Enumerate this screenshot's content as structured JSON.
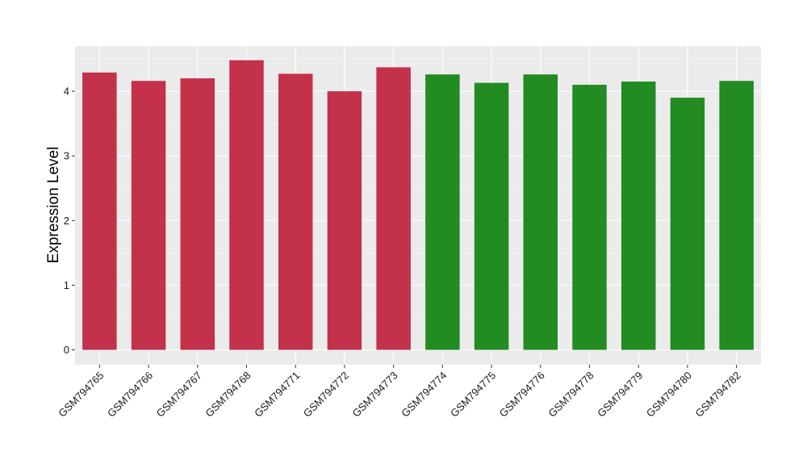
{
  "chart_data": {
    "type": "bar",
    "title": "",
    "xlabel": "",
    "ylabel": "Expression Level",
    "ylim": [
      -0.23,
      4.7
    ],
    "yticks": [
      0,
      1,
      2,
      3,
      4
    ],
    "grid": true,
    "background": "#ebebeb",
    "categories": [
      "GSM794765",
      "GSM794766",
      "GSM794767",
      "GSM794768",
      "GSM794771",
      "GSM794772",
      "GSM794773",
      "GSM794774",
      "GSM794775",
      "GSM794776",
      "GSM794778",
      "GSM794779",
      "GSM794780",
      "GSM794782"
    ],
    "values": [
      4.29,
      4.16,
      4.2,
      4.48,
      4.27,
      4.0,
      4.37,
      4.26,
      4.13,
      4.26,
      4.1,
      4.15,
      3.9,
      4.16
    ],
    "colors": [
      "#c3314a",
      "#c3314a",
      "#c3314a",
      "#c3314a",
      "#c3314a",
      "#c3314a",
      "#c3314a",
      "#228b22",
      "#228b22",
      "#228b22",
      "#228b22",
      "#228b22",
      "#228b22",
      "#228b22"
    ]
  }
}
